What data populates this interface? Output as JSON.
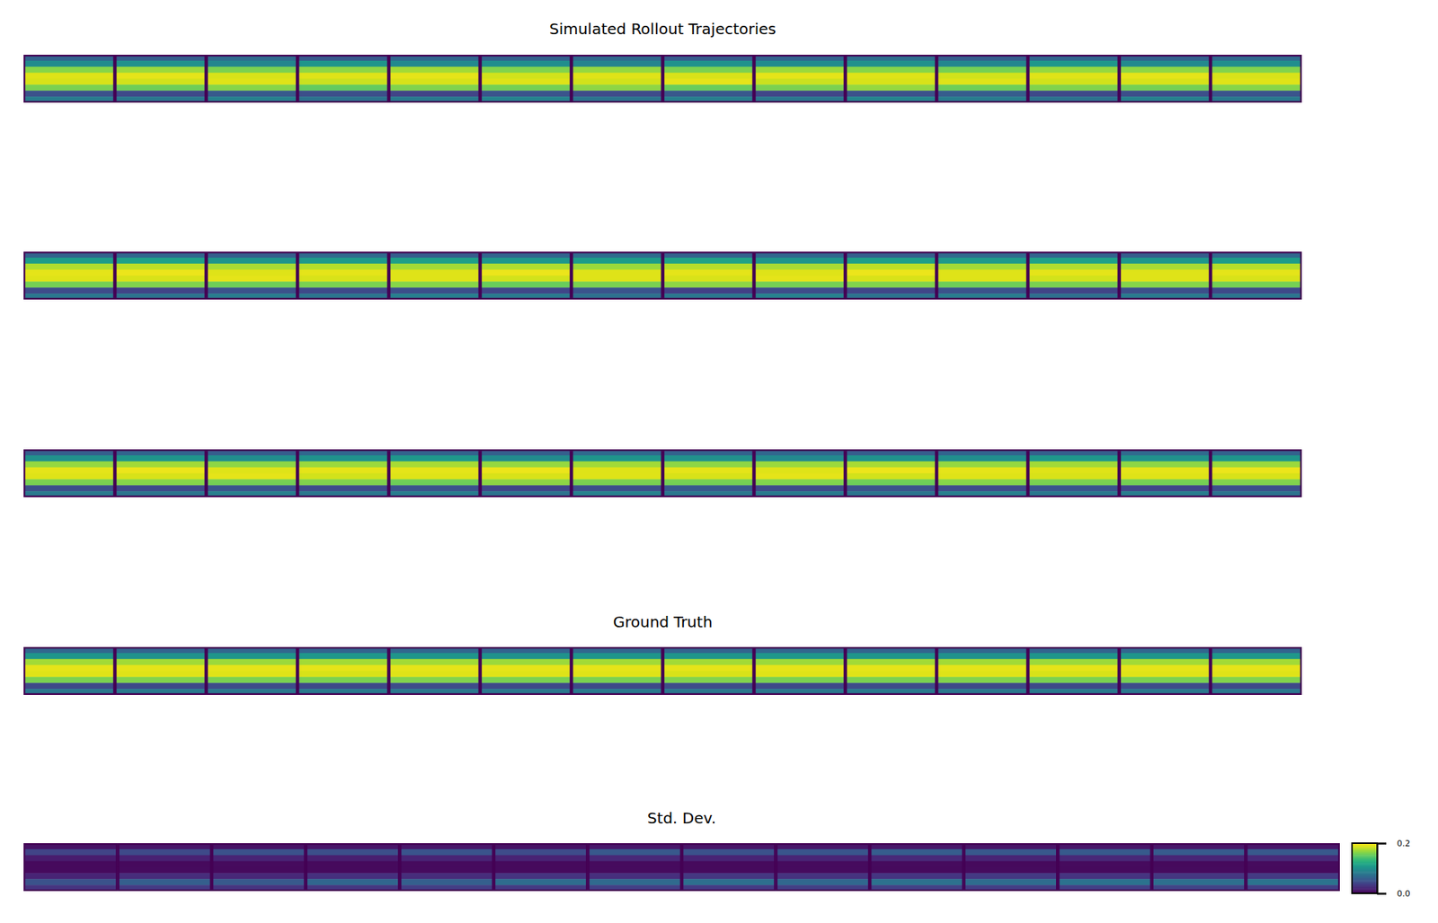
{
  "chart_data": {
    "type": "heatmap_grid",
    "panels": [
      {
        "title": "Simulated Rollout Trajectories",
        "color_range": [
          0,
          1
        ],
        "frames": [
          [
            0.32,
            0.48,
            0.82,
            0.95,
            0.94,
            0.8,
            0.25,
            0.42
          ],
          [
            0.3,
            0.5,
            0.85,
            0.96,
            0.93,
            0.78,
            0.22,
            0.4
          ],
          [
            0.35,
            0.46,
            0.8,
            0.94,
            0.95,
            0.82,
            0.28,
            0.44
          ],
          [
            0.28,
            0.52,
            0.83,
            0.95,
            0.92,
            0.76,
            0.24,
            0.38
          ],
          [
            0.33,
            0.47,
            0.86,
            0.96,
            0.94,
            0.81,
            0.2,
            0.41
          ],
          [
            0.31,
            0.49,
            0.81,
            0.93,
            0.95,
            0.79,
            0.26,
            0.45
          ],
          [
            0.34,
            0.45,
            0.84,
            0.95,
            0.93,
            0.83,
            0.23,
            0.39
          ],
          [
            0.29,
            0.51,
            0.8,
            0.94,
            0.96,
            0.77,
            0.27,
            0.43
          ],
          [
            0.32,
            0.48,
            0.85,
            0.96,
            0.92,
            0.8,
            0.21,
            0.4
          ],
          [
            0.36,
            0.5,
            0.82,
            0.95,
            0.94,
            0.84,
            0.25,
            0.46
          ],
          [
            0.3,
            0.46,
            0.79,
            0.93,
            0.95,
            0.78,
            0.29,
            0.42
          ],
          [
            0.33,
            0.53,
            0.84,
            0.95,
            0.93,
            0.81,
            0.22,
            0.38
          ],
          [
            0.31,
            0.47,
            0.83,
            0.96,
            0.94,
            0.79,
            0.24,
            0.44
          ],
          [
            0.34,
            0.49,
            0.81,
            0.94,
            0.95,
            0.82,
            0.26,
            0.41
          ]
        ]
      },
      {
        "color_range": [
          0,
          1
        ],
        "frames": [
          [
            0.31,
            0.55,
            0.88,
            0.96,
            0.95,
            0.79,
            0.23,
            0.4
          ],
          [
            0.33,
            0.57,
            0.9,
            0.97,
            0.94,
            0.81,
            0.2,
            0.38
          ],
          [
            0.3,
            0.52,
            0.87,
            0.95,
            0.96,
            0.78,
            0.25,
            0.42
          ],
          [
            0.34,
            0.54,
            0.89,
            0.96,
            0.94,
            0.8,
            0.22,
            0.39
          ],
          [
            0.29,
            0.56,
            0.86,
            0.95,
            0.95,
            0.82,
            0.24,
            0.43
          ],
          [
            0.32,
            0.53,
            0.88,
            0.97,
            0.93,
            0.77,
            0.21,
            0.41
          ],
          [
            0.35,
            0.55,
            0.85,
            0.95,
            0.95,
            0.8,
            0.26,
            0.37
          ],
          [
            0.31,
            0.58,
            0.89,
            0.96,
            0.94,
            0.83,
            0.19,
            0.4
          ],
          [
            0.33,
            0.52,
            0.87,
            0.95,
            0.96,
            0.79,
            0.23,
            0.44
          ],
          [
            0.3,
            0.56,
            0.9,
            0.97,
            0.94,
            0.81,
            0.21,
            0.38
          ],
          [
            0.34,
            0.54,
            0.86,
            0.95,
            0.95,
            0.78,
            0.25,
            0.42
          ],
          [
            0.32,
            0.57,
            0.88,
            0.96,
            0.93,
            0.8,
            0.2,
            0.36
          ],
          [
            0.29,
            0.53,
            0.87,
            0.95,
            0.95,
            0.82,
            0.24,
            0.41
          ],
          [
            0.33,
            0.55,
            0.89,
            0.96,
            0.94,
            0.79,
            0.22,
            0.39
          ]
        ]
      },
      {
        "color_range": [
          0,
          1
        ],
        "frames": [
          [
            0.3,
            0.5,
            0.84,
            0.96,
            0.95,
            0.8,
            0.24,
            0.41
          ],
          [
            0.32,
            0.52,
            0.86,
            0.97,
            0.94,
            0.82,
            0.22,
            0.39
          ],
          [
            0.29,
            0.49,
            0.83,
            0.95,
            0.96,
            0.79,
            0.26,
            0.43
          ],
          [
            0.33,
            0.51,
            0.85,
            0.96,
            0.93,
            0.81,
            0.23,
            0.4
          ],
          [
            0.31,
            0.53,
            0.87,
            0.96,
            0.95,
            0.78,
            0.25,
            0.42
          ],
          [
            0.3,
            0.48,
            0.84,
            0.97,
            0.94,
            0.83,
            0.21,
            0.38
          ],
          [
            0.34,
            0.52,
            0.86,
            0.95,
            0.95,
            0.8,
            0.24,
            0.44
          ],
          [
            0.31,
            0.5,
            0.83,
            0.96,
            0.94,
            0.79,
            0.27,
            0.4
          ],
          [
            0.33,
            0.47,
            0.85,
            0.95,
            0.96,
            0.81,
            0.22,
            0.41
          ],
          [
            0.29,
            0.51,
            0.87,
            0.97,
            0.93,
            0.78,
            0.25,
            0.39
          ],
          [
            0.32,
            0.49,
            0.84,
            0.96,
            0.95,
            0.82,
            0.23,
            0.43
          ],
          [
            0.3,
            0.53,
            0.86,
            0.95,
            0.94,
            0.8,
            0.26,
            0.4
          ],
          [
            0.34,
            0.5,
            0.83,
            0.96,
            0.95,
            0.79,
            0.21,
            0.42
          ],
          [
            0.31,
            0.52,
            0.85,
            0.97,
            0.94,
            0.81,
            0.24,
            0.38
          ]
        ]
      },
      {
        "title": "Ground Truth",
        "color_range": [
          0,
          1
        ],
        "frames": [
          [
            0.33,
            0.52,
            0.86,
            0.96,
            0.95,
            0.8,
            0.22,
            0.4
          ],
          [
            0.32,
            0.51,
            0.86,
            0.96,
            0.95,
            0.81,
            0.22,
            0.41
          ],
          [
            0.33,
            0.52,
            0.85,
            0.96,
            0.95,
            0.8,
            0.23,
            0.4
          ],
          [
            0.32,
            0.53,
            0.86,
            0.96,
            0.94,
            0.8,
            0.22,
            0.41
          ],
          [
            0.33,
            0.52,
            0.86,
            0.96,
            0.95,
            0.81,
            0.23,
            0.4
          ],
          [
            0.32,
            0.51,
            0.85,
            0.96,
            0.95,
            0.8,
            0.22,
            0.4
          ],
          [
            0.33,
            0.52,
            0.86,
            0.96,
            0.95,
            0.8,
            0.22,
            0.41
          ],
          [
            0.32,
            0.52,
            0.86,
            0.96,
            0.94,
            0.81,
            0.23,
            0.4
          ],
          [
            0.33,
            0.53,
            0.85,
            0.96,
            0.95,
            0.8,
            0.22,
            0.4
          ],
          [
            0.32,
            0.52,
            0.86,
            0.96,
            0.95,
            0.8,
            0.23,
            0.41
          ],
          [
            0.33,
            0.51,
            0.86,
            0.96,
            0.95,
            0.81,
            0.22,
            0.4
          ],
          [
            0.32,
            0.52,
            0.85,
            0.96,
            0.94,
            0.8,
            0.22,
            0.41
          ],
          [
            0.33,
            0.52,
            0.86,
            0.96,
            0.95,
            0.8,
            0.23,
            0.4
          ],
          [
            0.32,
            0.53,
            0.86,
            0.96,
            0.95,
            0.81,
            0.22,
            0.4
          ]
        ]
      },
      {
        "title": "Std. Dev.",
        "color_range": [
          0,
          0.2
        ],
        "colorbar": {
          "range": [
            0,
            0.2
          ],
          "ticks": [
            0.2,
            {
              "value": 0,
              "label": "0.0"
            }
          ]
        },
        "frames": [
          [
            0.01,
            0.04,
            0.015,
            0.005,
            0.005,
            0.02,
            0.05,
            0.03
          ],
          [
            0.012,
            0.045,
            0.018,
            0.005,
            0.006,
            0.025,
            0.06,
            0.035
          ],
          [
            0.01,
            0.05,
            0.02,
            0.006,
            0.005,
            0.022,
            0.055,
            0.03
          ],
          [
            0.011,
            0.048,
            0.017,
            0.005,
            0.005,
            0.028,
            0.065,
            0.032
          ],
          [
            0.012,
            0.052,
            0.02,
            0.006,
            0.006,
            0.025,
            0.06,
            0.036
          ],
          [
            0.01,
            0.046,
            0.019,
            0.005,
            0.005,
            0.03,
            0.07,
            0.034
          ],
          [
            0.013,
            0.055,
            0.022,
            0.006,
            0.006,
            0.027,
            0.068,
            0.038
          ],
          [
            0.011,
            0.05,
            0.02,
            0.005,
            0.005,
            0.032,
            0.072,
            0.035
          ],
          [
            0.012,
            0.053,
            0.021,
            0.006,
            0.006,
            0.029,
            0.066,
            0.037
          ],
          [
            0.013,
            0.058,
            0.023,
            0.006,
            0.005,
            0.031,
            0.074,
            0.039
          ],
          [
            0.011,
            0.054,
            0.02,
            0.005,
            0.006,
            0.033,
            0.07,
            0.036
          ],
          [
            0.012,
            0.056,
            0.022,
            0.006,
            0.005,
            0.03,
            0.075,
            0.038
          ],
          [
            0.013,
            0.057,
            0.021,
            0.005,
            0.006,
            0.032,
            0.072,
            0.04
          ],
          [
            0.012,
            0.055,
            0.023,
            0.006,
            0.005,
            0.034,
            0.076,
            0.037
          ]
        ]
      }
    ]
  }
}
